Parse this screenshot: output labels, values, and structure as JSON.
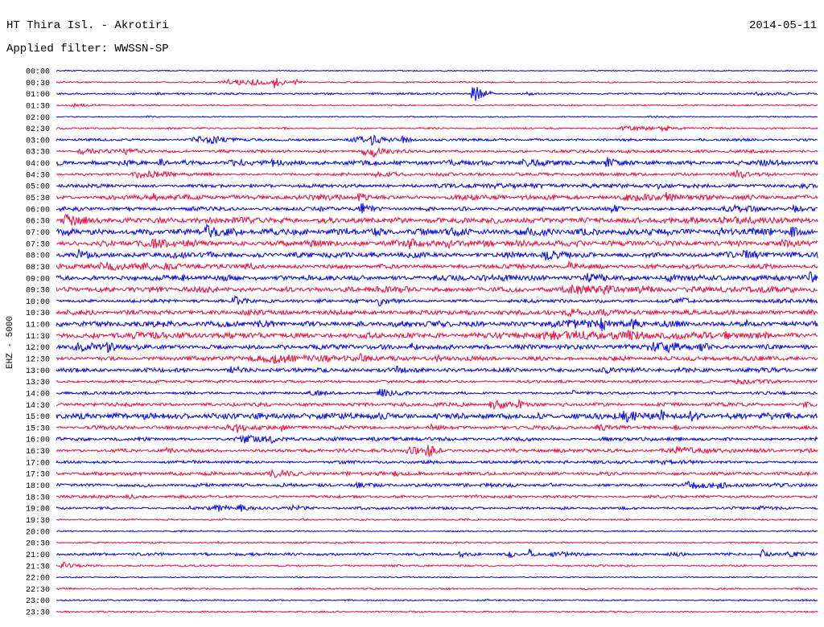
{
  "chart_data": {
    "type": "line",
    "title": "HT Thira Isl. - Akrotiri",
    "date": "2014-05-11",
    "filter": "Applied filter: WWSSN-SP",
    "ylabel": "EHZ - 5000",
    "grid": false,
    "trace_colors": [
      "#1414e6",
      "#ec1c4a"
    ],
    "rows": [
      {
        "label": "00:00",
        "noise": 0.05,
        "bursts": []
      },
      {
        "label": "00:30",
        "noise": 0.06,
        "bursts": [
          [
            6.3,
            9.9,
            0.35
          ],
          [
            7.6,
            8.4,
            0.45
          ],
          [
            8.5,
            9.2,
            0.7
          ],
          [
            9.3,
            9.9,
            0.4
          ]
        ]
      },
      {
        "label": "01:00",
        "noise": 0.08,
        "bursts": [
          [
            3.4,
            4.0,
            0.12
          ],
          [
            16.3,
            17.2,
            1.1
          ],
          [
            18.5,
            18.9,
            0.3
          ],
          [
            27.2,
            29.8,
            0.18
          ],
          [
            29.6,
            29.8,
            0.25
          ]
        ]
      },
      {
        "label": "01:30",
        "noise": 0.06,
        "bursts": [
          [
            0.4,
            2.4,
            0.2
          ]
        ]
      },
      {
        "label": "02:00",
        "noise": 0.05,
        "bursts": [
          [
            3.5,
            4.2,
            0.12
          ],
          [
            23.0,
            25.8,
            0.1
          ]
        ]
      },
      {
        "label": "02:30",
        "noise": 0.07,
        "bursts": [
          [
            22.0,
            25.4,
            0.3
          ],
          [
            23.8,
            24.6,
            0.35
          ],
          [
            25.6,
            26.0,
            0.15
          ]
        ]
      },
      {
        "label": "03:00",
        "noise": 0.1,
        "bursts": [
          [
            5.1,
            8.0,
            0.4
          ],
          [
            6.0,
            7.0,
            0.45
          ],
          [
            11.4,
            15.3,
            0.35
          ],
          [
            12.3,
            13.0,
            0.5
          ],
          [
            13.5,
            14.3,
            0.4
          ],
          [
            25.3,
            25.8,
            0.15
          ]
        ]
      },
      {
        "label": "03:30",
        "noise": 0.12,
        "bursts": [
          [
            0.6,
            3.8,
            0.3
          ],
          [
            2.4,
            3.5,
            0.45
          ],
          [
            11.7,
            14.1,
            0.45
          ],
          [
            12.3,
            13.4,
            0.55
          ]
        ]
      },
      {
        "label": "04:00",
        "noise": 0.2,
        "bursts": [
          [
            2.4,
            3.4,
            0.45
          ],
          [
            4.0,
            4.6,
            0.35
          ],
          [
            6.6,
            11.0,
            0.3
          ],
          [
            8.4,
            9.4,
            0.45
          ],
          [
            18.2,
            20.2,
            0.5
          ],
          [
            21.6,
            22.2,
            0.75
          ],
          [
            27.3,
            29.6,
            0.25
          ]
        ]
      },
      {
        "label": "04:30",
        "noise": 0.12,
        "bursts": [
          [
            2.8,
            5.6,
            0.45
          ],
          [
            4.1,
            4.8,
            0.35
          ],
          [
            12.0,
            16.0,
            0.25
          ],
          [
            15.2,
            15.9,
            0.35
          ],
          [
            26.5,
            28.6,
            0.45
          ]
        ]
      },
      {
        "label": "05:00",
        "noise": 0.15,
        "bursts": [
          [
            15.0,
            30.0,
            0.22
          ],
          [
            23.5,
            25.0,
            0.35
          ],
          [
            29.3,
            30.0,
            0.35
          ]
        ]
      },
      {
        "label": "05:30",
        "noise": 0.22,
        "bursts": [
          [
            3.7,
            4.4,
            0.45
          ],
          [
            11.7,
            13.0,
            0.35
          ],
          [
            21.9,
            25.5,
            0.4
          ],
          [
            23.9,
            24.8,
            0.5
          ]
        ]
      },
      {
        "label": "06:00",
        "noise": 0.18,
        "bursts": [
          [
            11.9,
            12.6,
            0.85
          ],
          [
            21.8,
            22.5,
            0.55
          ],
          [
            26.0,
            29.9,
            0.35
          ],
          [
            28.9,
            29.6,
            0.5
          ]
        ]
      },
      {
        "label": "06:30",
        "noise": 0.25,
        "bursts": [
          [
            0.1,
            2.0,
            0.8
          ],
          [
            25.8,
            30.0,
            0.45
          ],
          [
            26.1,
            26.9,
            0.55
          ]
        ]
      },
      {
        "label": "07:00",
        "noise": 0.3,
        "bursts": [
          [
            5.8,
            6.5,
            1.0
          ],
          [
            12.5,
            13.0,
            0.55
          ],
          [
            26.1,
            26.6,
            0.6
          ],
          [
            28.9,
            29.5,
            0.5
          ]
        ]
      },
      {
        "label": "07:30",
        "noise": 0.25,
        "bursts": [
          [
            3.0,
            8.0,
            0.45
          ],
          [
            4.2,
            5.0,
            0.5
          ],
          [
            13.8,
            14.6,
            0.55
          ],
          [
            15.3,
            15.9,
            0.6
          ],
          [
            28.4,
            29.6,
            0.4
          ]
        ]
      },
      {
        "label": "08:00",
        "noise": 0.25,
        "bursts": [
          [
            0.7,
            2.0,
            0.6
          ],
          [
            19.0,
            21.0,
            0.55
          ],
          [
            27.0,
            27.6,
            0.8
          ]
        ]
      },
      {
        "label": "08:30",
        "noise": 0.2,
        "bursts": [
          [
            0.5,
            8.9,
            0.35
          ],
          [
            1.9,
            2.6,
            0.45
          ],
          [
            4.2,
            4.8,
            0.45
          ],
          [
            7.4,
            8.0,
            0.5
          ],
          [
            20.1,
            21.0,
            0.6
          ]
        ]
      },
      {
        "label": "09:00",
        "noise": 0.25,
        "bursts": [
          [
            20.7,
            22.0,
            0.55
          ],
          [
            24.0,
            24.8,
            0.5
          ],
          [
            29.6,
            30.0,
            0.8
          ]
        ]
      },
      {
        "label": "09:30",
        "noise": 0.25,
        "bursts": [
          [
            19.6,
            24.0,
            0.45
          ],
          [
            21.5,
            22.3,
            0.55
          ],
          [
            22.9,
            23.5,
            0.5
          ]
        ]
      },
      {
        "label": "10:00",
        "noise": 0.15,
        "bursts": [
          [
            6.8,
            8.2,
            0.55
          ],
          [
            12.6,
            13.4,
            0.55
          ],
          [
            24.5,
            25.3,
            0.5
          ]
        ]
      },
      {
        "label": "10:30",
        "noise": 0.2,
        "bursts": [
          [
            19.7,
            22.5,
            0.45
          ],
          [
            21.3,
            22.3,
            0.5
          ]
        ]
      },
      {
        "label": "11:00",
        "noise": 0.25,
        "bursts": [
          [
            19.8,
            23.5,
            0.55
          ],
          [
            21.3,
            22.2,
            0.75
          ],
          [
            22.6,
            23.3,
            0.75
          ],
          [
            27.1,
            27.6,
            0.55
          ]
        ]
      },
      {
        "label": "11:30",
        "noise": 0.25,
        "bursts": [
          [
            18.0,
            30.0,
            0.45
          ],
          [
            22.4,
            23.2,
            0.6
          ],
          [
            25.0,
            25.9,
            0.55
          ],
          [
            26.1,
            27.0,
            0.6
          ]
        ]
      },
      {
        "label": "12:00",
        "noise": 0.2,
        "bursts": [
          [
            0.5,
            3.3,
            0.55
          ],
          [
            1.9,
            2.6,
            0.7
          ],
          [
            13.9,
            14.5,
            0.45
          ],
          [
            23.0,
            26.5,
            0.55
          ],
          [
            24.0,
            24.8,
            0.75
          ],
          [
            25.3,
            26.0,
            0.7
          ]
        ]
      },
      {
        "label": "12:30",
        "noise": 0.18,
        "bursts": [
          [
            6.9,
            17.2,
            0.4
          ],
          [
            8.5,
            9.3,
            0.5
          ],
          [
            11.8,
            12.7,
            0.5
          ],
          [
            14.8,
            15.6,
            0.5
          ]
        ]
      },
      {
        "label": "13:00",
        "noise": 0.18,
        "bursts": [
          [
            6.8,
            7.5,
            0.55
          ],
          [
            13.3,
            14.0,
            0.5
          ],
          [
            21.6,
            22.2,
            0.45
          ]
        ]
      },
      {
        "label": "13:30",
        "noise": 0.12,
        "bursts": [
          [
            26.5,
            29.0,
            0.3
          ]
        ]
      },
      {
        "label": "14:00",
        "noise": 0.12,
        "bursts": [
          [
            9.8,
            11.8,
            0.3
          ],
          [
            12.5,
            14.3,
            0.45
          ],
          [
            20.3,
            20.8,
            0.35
          ]
        ]
      },
      {
        "label": "14:30",
        "noise": 0.15,
        "bursts": [
          [
            16.8,
            19.5,
            0.45
          ],
          [
            18.1,
            18.8,
            0.5
          ],
          [
            29.4,
            30.0,
            0.4
          ]
        ]
      },
      {
        "label": "15:00",
        "noise": 0.25,
        "bursts": [
          [
            21.8,
            25.5,
            0.55
          ],
          [
            23.7,
            24.5,
            0.7
          ],
          [
            24.9,
            25.6,
            0.6
          ]
        ]
      },
      {
        "label": "15:30",
        "noise": 0.15,
        "bursts": [
          [
            6.5,
            9.3,
            0.45
          ],
          [
            7.0,
            7.6,
            0.45
          ],
          [
            8.8,
            9.3,
            0.4
          ],
          [
            14.6,
            15.4,
            0.4
          ],
          [
            21.2,
            22.1,
            0.45
          ],
          [
            24.3,
            24.9,
            0.3
          ]
        ]
      },
      {
        "label": "16:00",
        "noise": 0.15,
        "bursts": [
          [
            6.9,
            9.8,
            0.45
          ],
          [
            8.4,
            9.0,
            0.45
          ]
        ]
      },
      {
        "label": "16:30",
        "noise": 0.15,
        "bursts": [
          [
            4.2,
            4.9,
            0.3
          ],
          [
            13.6,
            15.6,
            0.45
          ],
          [
            14.5,
            15.3,
            0.9
          ],
          [
            24.1,
            26.5,
            0.45
          ]
        ]
      },
      {
        "label": "17:00",
        "noise": 0.12,
        "bursts": [
          [
            5.3,
            5.7,
            0.2
          ],
          [
            14.6,
            15.1,
            0.25
          ],
          [
            23.0,
            28.0,
            0.22
          ]
        ]
      },
      {
        "label": "17:30",
        "noise": 0.15,
        "bursts": [
          [
            8.2,
            10.8,
            0.4
          ],
          [
            13.2,
            13.7,
            0.45
          ],
          [
            18.3,
            18.8,
            0.3
          ]
        ]
      },
      {
        "label": "18:00",
        "noise": 0.15,
        "bursts": [
          [
            11.7,
            12.8,
            0.3
          ],
          [
            19.4,
            19.9,
            0.3
          ],
          [
            24.6,
            27.0,
            0.45
          ],
          [
            25.0,
            25.6,
            0.45
          ],
          [
            26.0,
            26.6,
            0.45
          ]
        ]
      },
      {
        "label": "18:30",
        "noise": 0.12,
        "bursts": [
          [
            2.7,
            3.3,
            0.3
          ],
          [
            16.4,
            16.9,
            0.25
          ]
        ]
      },
      {
        "label": "19:00",
        "noise": 0.12,
        "bursts": [
          [
            5.2,
            5.6,
            0.3
          ],
          [
            5.9,
            8.1,
            0.4
          ],
          [
            7.1,
            7.6,
            0.55
          ],
          [
            9.2,
            9.9,
            0.45
          ],
          [
            27.7,
            28.2,
            0.3
          ]
        ]
      },
      {
        "label": "19:30",
        "noise": 0.07,
        "bursts": []
      },
      {
        "label": "20:00",
        "noise": 0.06,
        "bursts": []
      },
      {
        "label": "20:30",
        "noise": 0.07,
        "bursts": [
          [
            6.3,
            6.6,
            0.15
          ]
        ]
      },
      {
        "label": "21:00",
        "noise": 0.12,
        "bursts": [
          [
            15.8,
            16.8,
            0.45
          ],
          [
            17.8,
            18.2,
            0.5
          ],
          [
            18.6,
            18.9,
            0.65
          ],
          [
            19.3,
            21.6,
            0.3
          ],
          [
            24.1,
            25.3,
            0.3
          ],
          [
            27.7,
            28.3,
            0.6
          ],
          [
            28.7,
            30.0,
            0.35
          ]
        ]
      },
      {
        "label": "21:30",
        "noise": 0.08,
        "bursts": [
          [
            0.1,
            1.1,
            0.55
          ]
        ]
      },
      {
        "label": "22:00",
        "noise": 0.05,
        "bursts": []
      },
      {
        "label": "22:30",
        "noise": 0.07,
        "bursts": []
      },
      {
        "label": "23:00",
        "noise": 0.06,
        "bursts": []
      },
      {
        "label": "23:30",
        "noise": 0.07,
        "bursts": []
      }
    ]
  }
}
